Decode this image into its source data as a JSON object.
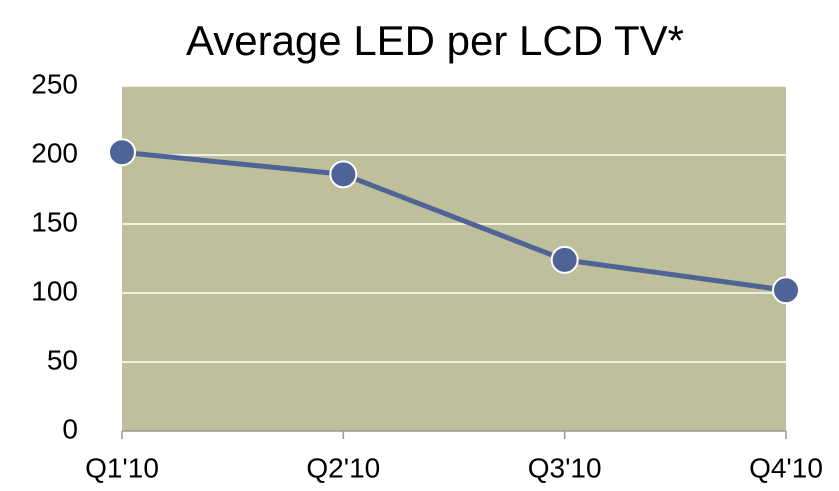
{
  "chart_data": {
    "type": "line",
    "title": "Average LED per LCD TV*",
    "categories": [
      "Q1'10",
      "Q2'10",
      "Q3'10",
      "Q4'10"
    ],
    "values": [
      202,
      186,
      124,
      102
    ],
    "color": "#4f6496",
    "plot_background": "#bfbf9b",
    "ylim": [
      0,
      250
    ],
    "yticks": [
      0,
      50,
      100,
      150,
      200,
      250
    ],
    "grid": true
  }
}
